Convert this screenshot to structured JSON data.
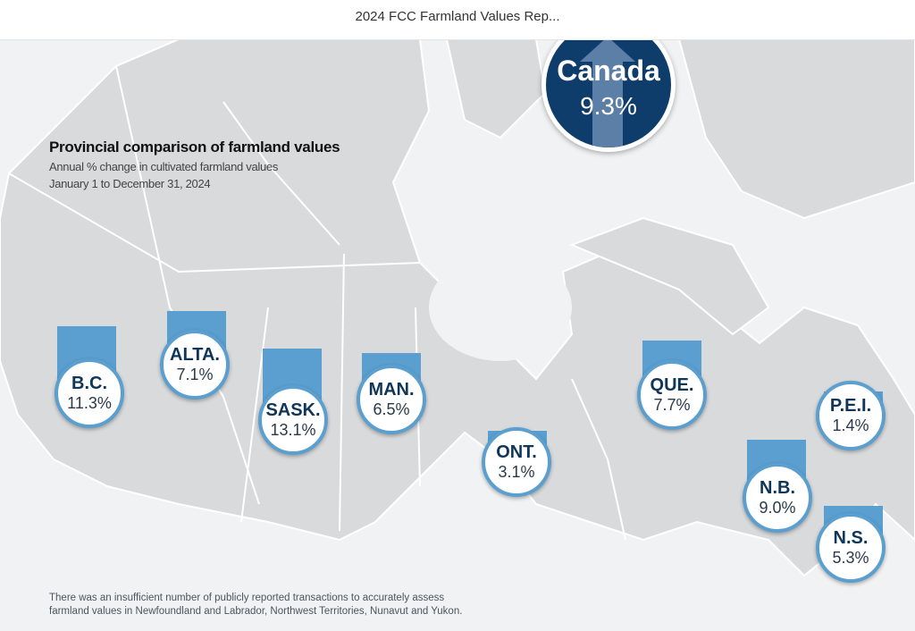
{
  "window": {
    "title": "2024 FCC Farmland Values Rep..."
  },
  "heading": {
    "title": "Provincial comparison of farmland values",
    "subtitle": "Annual % change in cultivated farmland values",
    "period": "January 1 to December 31, 2024"
  },
  "national": {
    "name": "Canada",
    "value": "9.3%",
    "icon": "arrow-up-icon",
    "color": "#0f3d6b"
  },
  "provinces": [
    {
      "name": "B.C.",
      "value": "11.3%"
    },
    {
      "name": "ALTA.",
      "value": "7.1%"
    },
    {
      "name": "SASK.",
      "value": "13.1%"
    },
    {
      "name": "MAN.",
      "value": "6.5%"
    },
    {
      "name": "ONT.",
      "value": "3.1%"
    },
    {
      "name": "QUE.",
      "value": "7.7%"
    },
    {
      "name": "P.E.I.",
      "value": "1.4%"
    },
    {
      "name": "N.B.",
      "value": "9.0%"
    },
    {
      "name": "N.S.",
      "value": "5.3%"
    }
  ],
  "colors": {
    "accent": "#5a9fcf",
    "land": "#d8dadc",
    "background": "#f1f2f3"
  },
  "footnote": {
    "line1": "There was an insufficient number of publicly reported transactions to accurately assess",
    "line2": "farmland values in Newfoundland and Labrador, Northwest Territories, Nunavut and Yukon."
  }
}
